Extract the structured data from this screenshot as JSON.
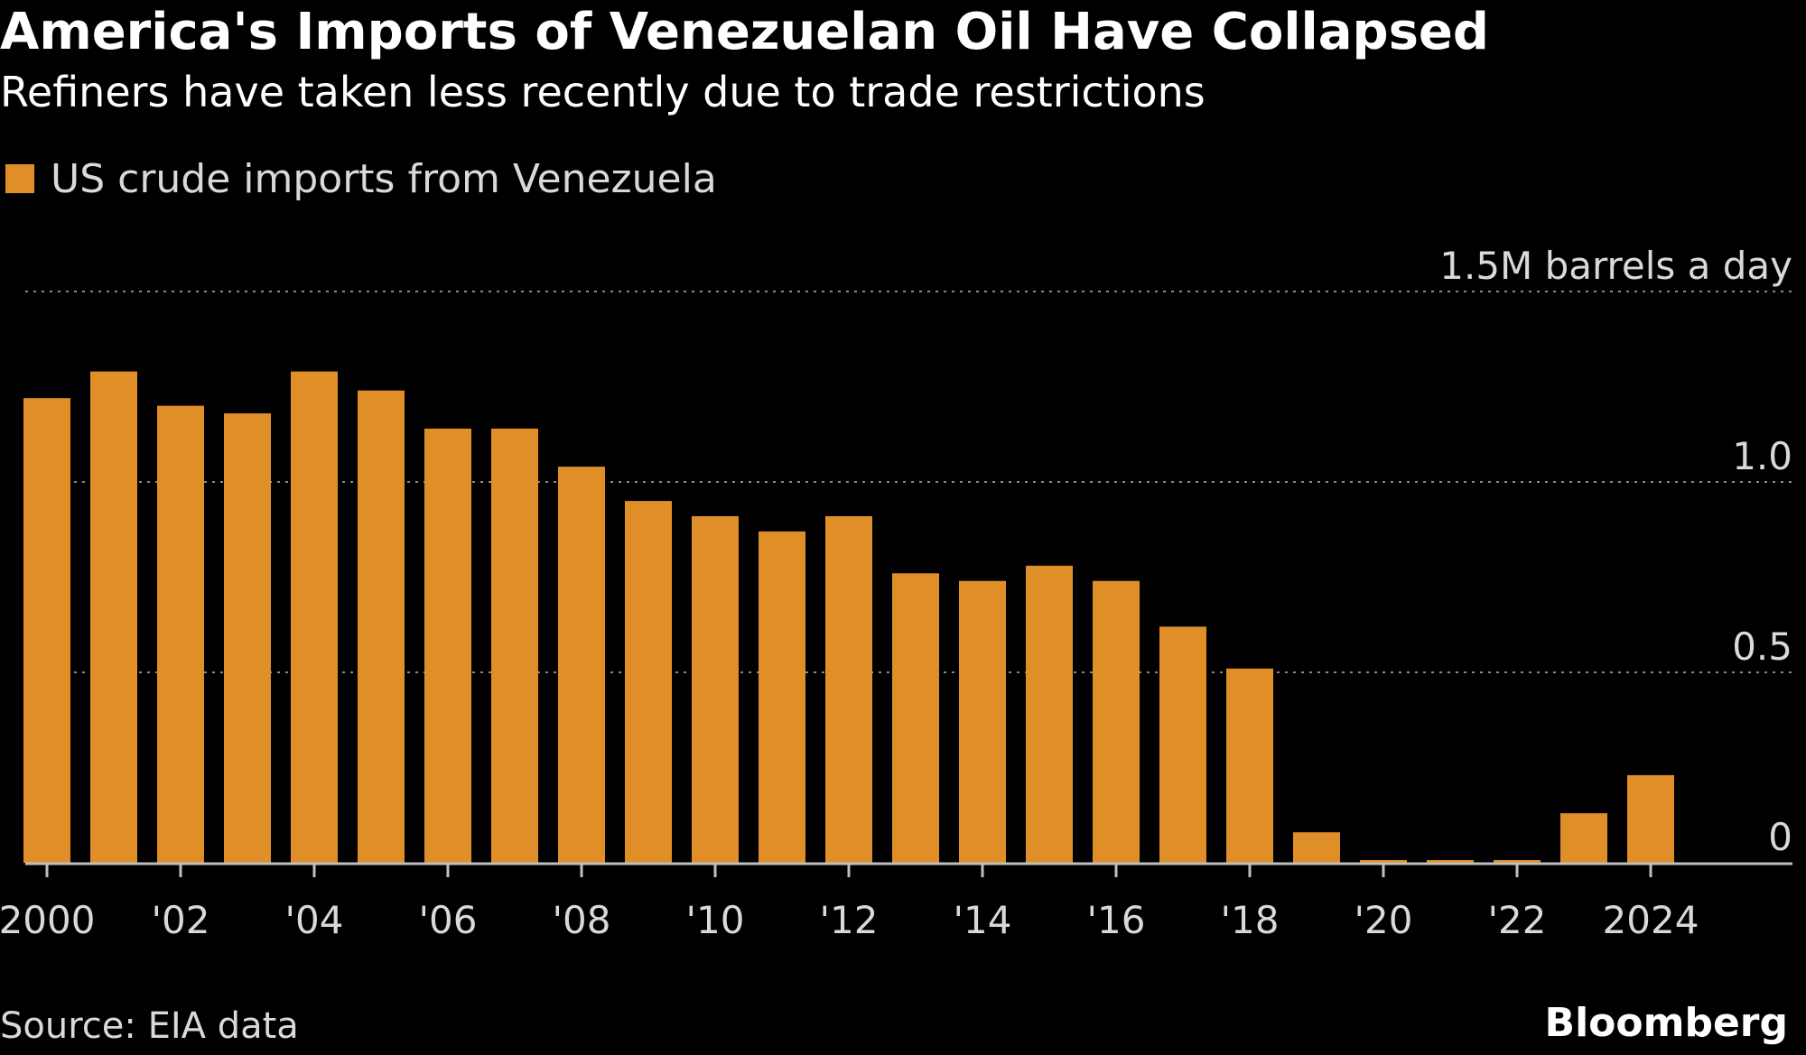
{
  "header": {
    "title": "America's Imports of Venezuelan Oil Have Collapsed",
    "subtitle": "Refiners have taken less recently due to trade restrictions"
  },
  "legend": {
    "label": "US crude imports from Venezuela"
  },
  "footer": {
    "source": "Source: EIA data",
    "brand": "Bloomberg"
  },
  "colors": {
    "background": "#000000",
    "bar": "#e08f28",
    "text": "#ffffff",
    "muted_text": "#d9d9d9",
    "grid": "#8a8a8a",
    "axis": "#bfbfbf"
  },
  "chart_data": {
    "type": "bar",
    "title": "America's Imports of Venezuelan Oil Have Collapsed",
    "subtitle": "Refiners have taken less recently due to trade restrictions",
    "xlabel": "",
    "ylabel": "barrels a day",
    "categories": [
      "2000",
      "2001",
      "2002",
      "2003",
      "2004",
      "2005",
      "2006",
      "2007",
      "2008",
      "2009",
      "2010",
      "2011",
      "2012",
      "2013",
      "2014",
      "2015",
      "2016",
      "2017",
      "2018",
      "2019",
      "2020",
      "2021",
      "2022",
      "2023",
      "2024"
    ],
    "series": [
      {
        "name": "US crude imports from Venezuela",
        "values": [
          1.22,
          1.29,
          1.2,
          1.18,
          1.29,
          1.24,
          1.14,
          1.14,
          1.04,
          0.95,
          0.91,
          0.87,
          0.91,
          0.76,
          0.74,
          0.78,
          0.74,
          0.62,
          0.51,
          0.08,
          0.005,
          0.005,
          0.005,
          0.13,
          0.23
        ]
      }
    ],
    "ylim": [
      0,
      1.5
    ],
    "y_ticks": [
      {
        "value": 0,
        "label": "0"
      },
      {
        "value": 0.5,
        "label": "0.5"
      },
      {
        "value": 1.0,
        "label": "1.0"
      },
      {
        "value": 1.5,
        "label": "1.5M barrels a day"
      }
    ],
    "x_ticks": [
      {
        "category": "2000",
        "label": "2000"
      },
      {
        "category": "2002",
        "label": "'02"
      },
      {
        "category": "2004",
        "label": "'04"
      },
      {
        "category": "2006",
        "label": "'06"
      },
      {
        "category": "2008",
        "label": "'08"
      },
      {
        "category": "2010",
        "label": "'10"
      },
      {
        "category": "2012",
        "label": "'12"
      },
      {
        "category": "2014",
        "label": "'14"
      },
      {
        "category": "2016",
        "label": "'16"
      },
      {
        "category": "2018",
        "label": "'18"
      },
      {
        "category": "2020",
        "label": "'20"
      },
      {
        "category": "2022",
        "label": "'22"
      },
      {
        "category": "2024",
        "label": "2024"
      }
    ],
    "grid": true,
    "grid_style": "dotted",
    "legend_position": "top-left"
  }
}
